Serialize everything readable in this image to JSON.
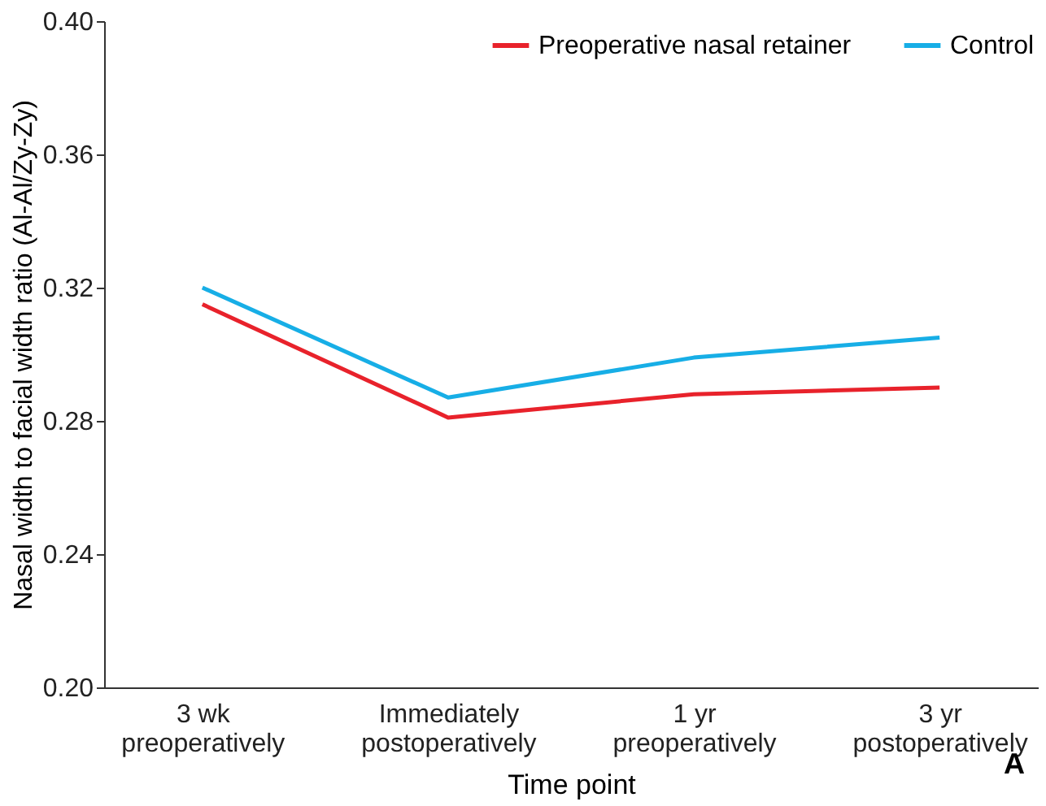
{
  "chart_data": {
    "type": "line",
    "xlabel": "Time point",
    "ylabel": "Nasal width to facial width ratio (Al-Al/Zy-Zy)",
    "categories": [
      "3 wk\npreoperatively",
      "Immediately\npostoperatively",
      "1 yr\npreoperatively",
      "3 yr\npostoperatively"
    ],
    "series": [
      {
        "name": "Preoperative nasal retainer",
        "color": "#e8222b",
        "values": [
          0.315,
          0.281,
          0.288,
          0.29
        ]
      },
      {
        "name": "Control",
        "color": "#17aee6",
        "values": [
          0.32,
          0.287,
          0.299,
          0.305
        ]
      }
    ],
    "ylim": [
      0.2,
      0.4
    ],
    "yticks": [
      {
        "value": 0.2,
        "label": "0.20"
      },
      0.24,
      0.28,
      0.32,
      0.36,
      {
        "value": 0.4,
        "label": "0.40"
      }
    ],
    "grid": false,
    "legend": "top right",
    "marker": "none",
    "line_style": "solid",
    "annotations": [
      "A"
    ]
  }
}
